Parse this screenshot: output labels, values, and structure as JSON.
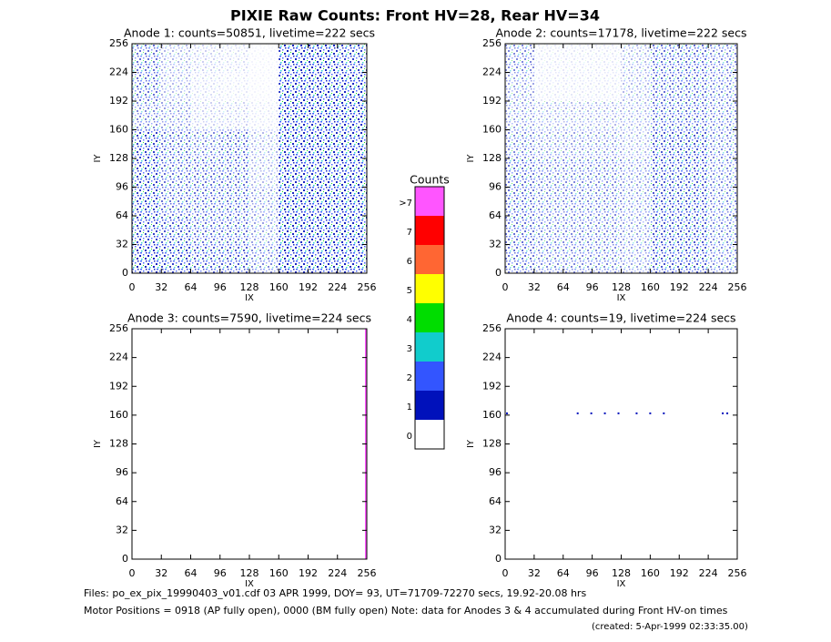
{
  "title": "PIXIE Raw Counts:  Front HV=28, Rear HV=34",
  "chart_data": [
    {
      "type": "heatmap",
      "title": "Anode 1: counts=50851, livetime=222 secs",
      "xlabel": "IX",
      "ylabel": "IY",
      "xlim": [
        0,
        256
      ],
      "ylim": [
        0,
        256
      ],
      "xticks": [
        0,
        32,
        64,
        96,
        128,
        160,
        192,
        224,
        256
      ],
      "yticks": [
        0,
        32,
        64,
        96,
        128,
        160,
        192,
        224,
        256
      ],
      "density": [
        [
          0.6,
          0.3,
          0.2,
          0.15,
          0.05,
          0.9,
          0.9,
          0.8
        ],
        [
          0.6,
          0.3,
          0.15,
          0.1,
          0.05,
          0.9,
          0.9,
          0.9
        ],
        [
          0.5,
          0.4,
          0.2,
          0.2,
          0.1,
          0.9,
          0.9,
          0.9
        ],
        [
          0.8,
          0.6,
          0.5,
          0.6,
          0.3,
          0.9,
          0.9,
          0.9
        ],
        [
          0.8,
          0.6,
          0.6,
          0.6,
          0.3,
          0.9,
          0.9,
          0.9
        ],
        [
          0.8,
          0.6,
          0.6,
          0.6,
          0.4,
          0.9,
          0.9,
          0.9
        ],
        [
          0.8,
          0.7,
          0.6,
          0.6,
          0.4,
          0.9,
          0.9,
          0.9
        ],
        [
          0.9,
          0.8,
          0.7,
          0.7,
          0.5,
          0.9,
          0.9,
          0.9
        ]
      ]
    },
    {
      "type": "heatmap",
      "title": "Anode 2: counts=17178, livetime=222 secs",
      "xlabel": "IX",
      "ylabel": "IY",
      "xlim": [
        0,
        256
      ],
      "ylim": [
        0,
        256
      ],
      "xticks": [
        0,
        32,
        64,
        96,
        128,
        160,
        192,
        224,
        256
      ],
      "yticks": [
        0,
        32,
        64,
        96,
        128,
        160,
        192,
        224,
        256
      ],
      "density": [
        [
          0.5,
          0.1,
          0.1,
          0.1,
          0.3,
          0.6,
          0.6,
          0.5
        ],
        [
          0.4,
          0.1,
          0.1,
          0.1,
          0.3,
          0.6,
          0.6,
          0.5
        ],
        [
          0.4,
          0.3,
          0.3,
          0.3,
          0.3,
          0.6,
          0.6,
          0.5
        ],
        [
          0.5,
          0.4,
          0.4,
          0.4,
          0.3,
          0.7,
          0.7,
          0.5
        ],
        [
          0.6,
          0.5,
          0.5,
          0.5,
          0.4,
          0.7,
          0.7,
          0.5
        ],
        [
          0.6,
          0.5,
          0.5,
          0.5,
          0.4,
          0.7,
          0.7,
          0.5
        ],
        [
          0.6,
          0.5,
          0.5,
          0.5,
          0.4,
          0.7,
          0.7,
          0.5
        ],
        [
          0.6,
          0.5,
          0.5,
          0.5,
          0.4,
          0.7,
          0.7,
          0.5
        ]
      ]
    },
    {
      "type": "heatmap",
      "title": "Anode 3: counts=7590, livetime=224 secs",
      "xlabel": "IX",
      "ylabel": "IY",
      "xlim": [
        0,
        256
      ],
      "ylim": [
        0,
        256
      ],
      "xticks": [
        0,
        32,
        64,
        96,
        128,
        160,
        192,
        224,
        256
      ],
      "yticks": [
        0,
        32,
        64,
        96,
        128,
        160,
        192,
        224,
        256
      ],
      "vlines": [
        255
      ],
      "mark_color": "#ff55ff"
    },
    {
      "type": "heatmap",
      "title": "Anode 4: counts=19, livetime=224 secs",
      "xlabel": "IX",
      "ylabel": "IY",
      "xlim": [
        0,
        256
      ],
      "ylim": [
        0,
        256
      ],
      "xticks": [
        0,
        32,
        64,
        96,
        128,
        160,
        192,
        224,
        256
      ],
      "yticks": [
        0,
        32,
        64,
        96,
        128,
        160,
        192,
        224,
        256
      ],
      "points": {
        "x": [
          2,
          80,
          95,
          110,
          125,
          145,
          160,
          175,
          240,
          245
        ],
        "y": [
          162,
          162,
          162,
          162,
          162,
          162,
          162,
          162,
          162,
          162
        ]
      },
      "mark_color": "#0011bb"
    }
  ],
  "colorbar": {
    "title": "Counts",
    "labels": [
      ">7",
      "7",
      "6",
      "5",
      "4",
      "3",
      "2",
      "1",
      "0"
    ],
    "colors": [
      "#ff55ff",
      "#ff0000",
      "#ff6633",
      "#ffff00",
      "#00dd00",
      "#11cccc",
      "#3355ff",
      "#0011bb",
      "#ffffff"
    ]
  },
  "footer": [
    "Files: po_ex_pix_19990403_v01.cdf    03 APR 1999, DOY= 93, UT=71709-72270 secs, 19.92-20.08 hrs",
    "Motor Positions = 0918 (AP fully open), 0000 (BM fully open)    Note: data for Anodes 3 & 4 accumulated during Front HV-on times",
    "(created:  5-Apr-1999 02:33:35.00)"
  ]
}
